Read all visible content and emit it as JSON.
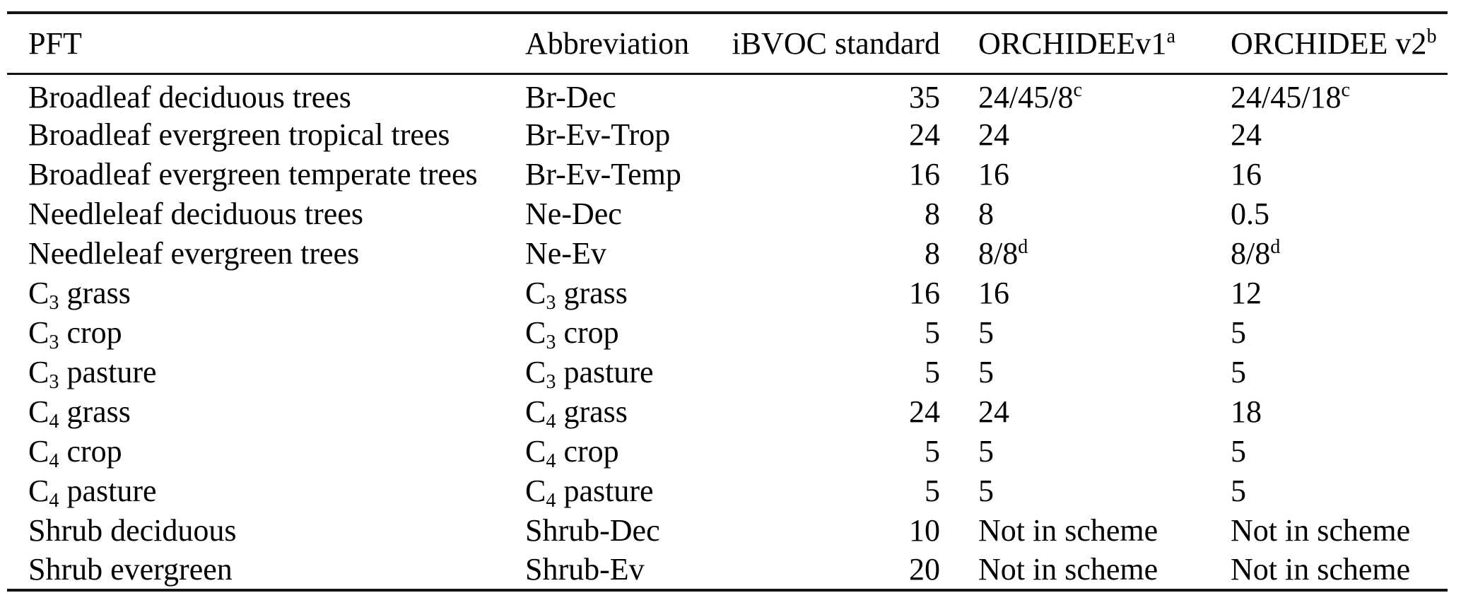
{
  "page": {
    "background_color": "#ffffff",
    "text_color": "#000000",
    "rule_color": "#141414"
  },
  "table": {
    "columns": [
      {
        "key": "pft",
        "label": "PFT"
      },
      {
        "key": "abbr",
        "label": "Abbreviation"
      },
      {
        "key": "ibvoc",
        "label": "iBVOC standard"
      },
      {
        "key": "v1",
        "label": "ORCHIDEEv1^{a}"
      },
      {
        "key": "v2",
        "label": "ORCHIDEE v2^{b}"
      }
    ],
    "rows": [
      [
        "Broadleaf deciduous trees",
        "Br-Dec",
        "35",
        "24/45/8^{c}",
        "24/45/18^{c}"
      ],
      [
        "Broadleaf evergreen tropical trees",
        "Br-Ev-Trop",
        "24",
        "24",
        "24"
      ],
      [
        "Broadleaf evergreen temperate trees",
        "Br-Ev-Temp",
        "16",
        "16",
        "16"
      ],
      [
        "Needleleaf deciduous trees",
        "Ne-Dec",
        "8",
        "8",
        "0.5"
      ],
      [
        "Needleleaf evergreen trees",
        "Ne-Ev",
        "8",
        "8/8^{d}",
        "8/8^{d}"
      ],
      [
        "C_{3} grass",
        "C_{3} grass",
        "16",
        "16",
        "12"
      ],
      [
        "C_{3} crop",
        "C_{3} crop",
        "5",
        "5",
        "5"
      ],
      [
        "C_{3} pasture",
        "C_{3} pasture",
        "5",
        "5",
        "5"
      ],
      [
        "C_{4} grass",
        "C_{4} grass",
        "24",
        "24",
        "18"
      ],
      [
        "C_{4} crop",
        "C_{4} crop",
        "5",
        "5",
        "5"
      ],
      [
        "C_{4} pasture",
        "C_{4} pasture",
        "5",
        "5",
        "5"
      ],
      [
        "Shrub deciduous",
        "Shrub-Dec",
        "10",
        "Not in scheme",
        "Not in scheme"
      ],
      [
        "Shrub evergreen",
        "Shrub-Ev",
        "20",
        "Not in scheme",
        "Not in scheme"
      ]
    ]
  }
}
